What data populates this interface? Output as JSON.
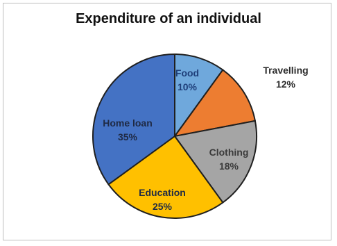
{
  "chart_data": {
    "type": "pie",
    "title": "Expenditure of an individual",
    "slices": [
      {
        "label": "Food",
        "value": 10,
        "display": "10%",
        "color": "#6fa8dc",
        "text_color": "#1f3f7a"
      },
      {
        "label": "Travelling",
        "value": 12,
        "display": "12%",
        "color": "#ed7d31",
        "text_color": "#2b2b2b"
      },
      {
        "label": "Clothing",
        "value": 18,
        "display": "18%",
        "color": "#a5a5a5",
        "text_color": "#3a3a3a"
      },
      {
        "label": "Education",
        "value": 25,
        "display": "25%",
        "color": "#ffc000",
        "text_color": "#1f2a44"
      },
      {
        "label": "Home loan",
        "value": 35,
        "display": "35%",
        "color": "#4472c4",
        "text_color": "#1f2a44"
      }
    ]
  }
}
